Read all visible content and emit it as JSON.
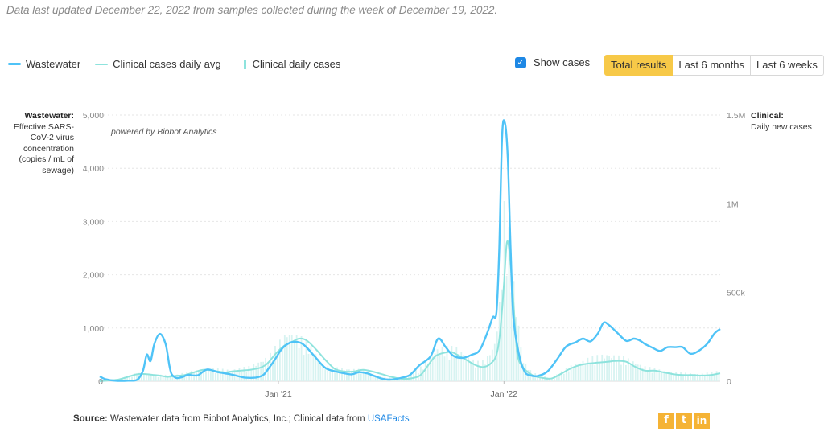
{
  "updated_note": "Data last updated December 22, 2022 from samples collected during the week of December 19, 2022.",
  "legend": {
    "wastewater": "Wastewater",
    "clinical_avg": "Clinical cases daily avg",
    "clinical_daily": "Clinical daily cases"
  },
  "show_cases": {
    "label": "Show cases",
    "checked": true
  },
  "range_buttons": [
    "Total results",
    "Last 6 months",
    "Last 6 weeks"
  ],
  "left_axis": {
    "title": "Wastewater:",
    "subtitle": "Effective SARS-CoV-2 virus concentration (copies / mL of sewage)"
  },
  "right_axis": {
    "title": "Clinical:",
    "subtitle": "Daily new cases"
  },
  "powered_by": "powered by Biobot Analytics",
  "source": {
    "label": "Source:",
    "text": "Wastewater data from Biobot Analytics, Inc.; Clinical data from",
    "link": "USAFacts"
  },
  "social": [
    "f",
    "t",
    "in"
  ],
  "colors": {
    "wastewater": "#4fc3f7",
    "clinical": "#8ee3dd",
    "clinical_bars": "#d7f3f1",
    "accent": "#f7c948",
    "grid": "#e6e6e6"
  },
  "chart_data": {
    "type": "line",
    "x_tick_labels": [
      "Jan '21",
      "Jan '22"
    ],
    "y_left": {
      "ticks": [
        "0",
        "1,000",
        "2,000",
        "3,000",
        "4,000",
        "5,000"
      ],
      "ylim": [
        0,
        5000
      ]
    },
    "y_right": {
      "ticks": [
        "0",
        "500k",
        "1M",
        "1.5M"
      ],
      "ylim": [
        0,
        1500000
      ]
    },
    "x_range_months": [
      0,
      33
    ],
    "x_tick_positions_months": [
      9.5,
      21.5
    ],
    "series": [
      {
        "name": "Wastewater",
        "axis": "left",
        "x_months": [
          0,
          0.3,
          0.8,
          1.5,
          2.0,
          2.3,
          2.5,
          2.7,
          2.9,
          3.2,
          3.5,
          3.7,
          3.8,
          3.9,
          4.1,
          4.4,
          4.7,
          5.2,
          5.7,
          6.3,
          6.8,
          7.2,
          7.7,
          8.3,
          8.7,
          9.0,
          9.3,
          9.6,
          9.9,
          10.3,
          10.8,
          11.4,
          12.0,
          12.6,
          13.0,
          13.4,
          13.8,
          14.2,
          14.6,
          15.0,
          15.4,
          16.0,
          16.5,
          17.0,
          17.6,
          18.0,
          18.4,
          18.8,
          19.3,
          19.8,
          20.2,
          20.6,
          20.9,
          21.1,
          21.25,
          21.4,
          21.55,
          21.7,
          21.85,
          22.0,
          22.3,
          22.6,
          22.9,
          23.3,
          23.8,
          24.3,
          24.8,
          25.3,
          25.7,
          26.1,
          26.5,
          26.8,
          27.1,
          27.5,
          28.0,
          28.4,
          28.7,
          29.0,
          29.4,
          29.8,
          30.2,
          30.6,
          31.0,
          31.4,
          31.8,
          32.3,
          32.7,
          33.0
        ],
        "values": [
          90,
          40,
          10,
          10,
          30,
          200,
          500,
          380,
          700,
          890,
          700,
          300,
          150,
          100,
          60,
          80,
          120,
          110,
          220,
          170,
          140,
          110,
          70,
          70,
          120,
          250,
          400,
          570,
          680,
          740,
          700,
          480,
          250,
          180,
          150,
          130,
          170,
          150,
          100,
          50,
          30,
          60,
          120,
          300,
          470,
          800,
          640,
          480,
          440,
          500,
          580,
          900,
          1200,
          1300,
          2500,
          4600,
          4850,
          4200,
          2500,
          1200,
          500,
          180,
          110,
          100,
          180,
          400,
          650,
          730,
          800,
          750,
          900,
          1100,
          1050,
          920,
          760,
          800,
          770,
          700,
          630,
          570,
          640,
          640,
          640,
          520,
          560,
          700,
          900,
          980
        ]
      },
      {
        "name": "Clinical cases daily avg",
        "axis": "right",
        "x_months": [
          0,
          0.5,
          1.0,
          1.5,
          2.0,
          2.5,
          2.9,
          3.3,
          3.6,
          4.0,
          4.5,
          5.0,
          5.5,
          6.0,
          6.3,
          6.7,
          7.0,
          7.5,
          8.0,
          8.5,
          8.8,
          9.0,
          9.4,
          9.8,
          10.2,
          10.6,
          11.0,
          11.5,
          12.0,
          12.5,
          13.0,
          13.5,
          14.0,
          14.5,
          15.0,
          15.5,
          16.0,
          16.5,
          17.0,
          17.3,
          17.6,
          17.9,
          18.3,
          18.7,
          19.0,
          19.5,
          20.0,
          20.4,
          20.8,
          21.1,
          21.3,
          21.5,
          21.65,
          21.8,
          22.0,
          22.2,
          22.5,
          22.8,
          23.1,
          23.5,
          24.0,
          24.5,
          25.0,
          25.5,
          26.0,
          26.5,
          27.0,
          27.5,
          28.0,
          28.5,
          29.0,
          29.5,
          30.0,
          30.5,
          31.0,
          31.5,
          32.0,
          32.5,
          33.0
        ],
        "values": [
          0,
          5000,
          10000,
          25000,
          40000,
          40000,
          35000,
          30000,
          25000,
          30000,
          35000,
          50000,
          65000,
          60000,
          55000,
          50000,
          55000,
          60000,
          65000,
          75000,
          90000,
          110000,
          160000,
          200000,
          220000,
          240000,
          230000,
          180000,
          120000,
          70000,
          55000,
          55000,
          65000,
          55000,
          40000,
          25000,
          15000,
          15000,
          30000,
          65000,
          110000,
          145000,
          160000,
          165000,
          150000,
          120000,
          90000,
          80000,
          100000,
          150000,
          280000,
          550000,
          780000,
          720000,
          450000,
          160000,
          80000,
          50000,
          30000,
          20000,
          15000,
          40000,
          70000,
          90000,
          100000,
          105000,
          110000,
          115000,
          110000,
          80000,
          60000,
          60000,
          50000,
          40000,
          35000,
          35000,
          32000,
          35000,
          45000
        ]
      },
      {
        "name": "Clinical daily cases",
        "axis": "right",
        "x_months": [
          0,
          1,
          2,
          3,
          4,
          5,
          6,
          7,
          8,
          9,
          10,
          11,
          12,
          13,
          14,
          15,
          16,
          17,
          18,
          19,
          20,
          20.5,
          21,
          21.3,
          21.5,
          21.7,
          22,
          22.5,
          23,
          24,
          25,
          26,
          27,
          28,
          29,
          30,
          31,
          32,
          33
        ],
        "values": [
          0,
          10000,
          40000,
          30000,
          30000,
          50000,
          60000,
          55000,
          70000,
          120000,
          240000,
          190000,
          70000,
          60000,
          55000,
          20000,
          15000,
          60000,
          160000,
          160000,
          90000,
          100000,
          180000,
          400000,
          820000,
          760000,
          480000,
          100000,
          40000,
          15000,
          70000,
          110000,
          130000,
          110000,
          70000,
          50000,
          40000,
          35000,
          50000
        ]
      }
    ]
  }
}
